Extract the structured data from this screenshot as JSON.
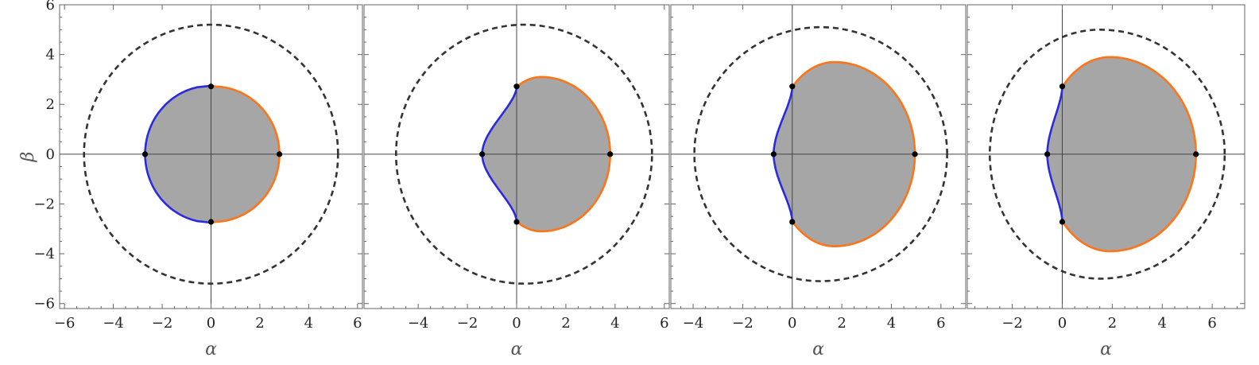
{
  "chart_data": [
    {
      "type": "line",
      "panel": 1,
      "xlabel": "α",
      "ylabel": "β",
      "xlim": [
        -6.2,
        6.2
      ],
      "ylim": [
        -6.2,
        6
      ],
      "xticks": [
        "−6",
        "−4",
        "−2",
        "0",
        "2",
        "4",
        "6"
      ],
      "yticks": [
        "−6",
        "−4",
        "−2",
        "0",
        "2",
        "4",
        "6"
      ],
      "colors": {
        "prograde": "#ff7417",
        "retrograde": "#2b2bd9",
        "shadow": "#a6a6a6",
        "boundary": "#333333"
      },
      "shadow": {
        "x_min": -2.7,
        "x_max": 2.8,
        "y_half": 2.75,
        "y_max": 2.72,
        "x_at_ymax": 0.1
      },
      "dashed_circle": {
        "center_x": 0.0,
        "radius": 5.2
      },
      "points": [
        [
          0,
          2.72
        ],
        [
          0,
          -2.72
        ],
        [
          -2.7,
          0
        ],
        [
          2.8,
          0
        ]
      ]
    },
    {
      "type": "line",
      "panel": 2,
      "xlabel": "α",
      "ylabel": "",
      "xlim": [
        -6.2,
        6.2
      ],
      "ylim": [
        -6.2,
        6
      ],
      "xticks": [
        "−4",
        "−2",
        "0",
        "2",
        "4",
        "6"
      ],
      "yticks": [],
      "colors": {
        "prograde": "#ff7417",
        "retrograde": "#2b2bd9",
        "shadow": "#a6a6a6",
        "boundary": "#333333"
      },
      "shadow": {
        "x_min": -1.4,
        "x_max": 3.8,
        "y_half": 2.7,
        "y_max": 3.1,
        "x_at_ymax": 1.0
      },
      "dashed_circle": {
        "center_x": 0.3,
        "radius": 5.2
      },
      "points": [
        [
          0,
          2.72
        ],
        [
          0,
          -2.72
        ],
        [
          -1.4,
          0
        ],
        [
          3.8,
          0
        ]
      ]
    },
    {
      "type": "line",
      "panel": 3,
      "xlabel": "α",
      "ylabel": "",
      "xlim": [
        -4.9,
        7.0
      ],
      "ylim": [
        -6.2,
        6
      ],
      "xticks": [
        "−4",
        "−2",
        "0",
        "2",
        "4",
        "6"
      ],
      "yticks": [],
      "colors": {
        "prograde": "#ff7417",
        "retrograde": "#2b2bd9",
        "shadow": "#a6a6a6",
        "boundary": "#333333"
      },
      "shadow": {
        "x_min": -0.75,
        "x_max": 4.95,
        "y_half": 2.7,
        "y_max": 3.7,
        "x_at_ymax": 1.7
      },
      "dashed_circle": {
        "center_x": 1.15,
        "radius": 5.1
      },
      "points": [
        [
          0,
          2.72
        ],
        [
          0,
          -2.72
        ],
        [
          -0.75,
          0
        ],
        [
          4.95,
          0
        ]
      ]
    },
    {
      "type": "line",
      "panel": 4,
      "xlabel": "α",
      "ylabel": "",
      "xlim": [
        -3.8,
        7.3
      ],
      "ylim": [
        -6.2,
        6
      ],
      "xticks": [
        "−2",
        "0",
        "2",
        "4",
        "6"
      ],
      "yticks": [],
      "colors": {
        "prograde": "#ff7417",
        "retrograde": "#2b2bd9",
        "shadow": "#a6a6a6",
        "boundary": "#333333"
      },
      "shadow": {
        "x_min": -0.6,
        "x_max": 5.35,
        "y_half": 2.7,
        "y_max": 3.9,
        "x_at_ymax": 1.9
      },
      "dashed_circle": {
        "center_x": 1.5,
        "radius": 5.0,
        "x_min": -2.9
      },
      "points": [
        [
          0,
          2.72
        ],
        [
          0,
          -2.72
        ],
        [
          -0.6,
          0
        ],
        [
          5.35,
          0
        ]
      ]
    }
  ]
}
